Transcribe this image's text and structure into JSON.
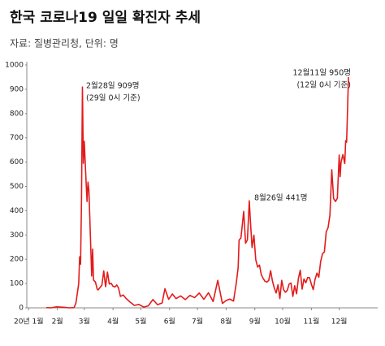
{
  "chart_data": {
    "type": "line",
    "title": "한국 코로나19 일일 확진자 추세",
    "subtitle": "자료: 질병관리청, 단위: 명",
    "annotations": [
      "2월28일 909명",
      "(29일 0시 기준)",
      "8월26일 441명",
      "12월11일 950명",
      "(12일 0시 기준)"
    ],
    "x": [
      20,
      25,
      31,
      35,
      40,
      45,
      50,
      52,
      55,
      56,
      57,
      58,
      59,
      60,
      61,
      62,
      63,
      64,
      65,
      66,
      67,
      68,
      69,
      70,
      71,
      72,
      73,
      75,
      76,
      78,
      80,
      82,
      84,
      86,
      88,
      90,
      92,
      94,
      96,
      98,
      100,
      103,
      106,
      110,
      115,
      120,
      125,
      130,
      135,
      140,
      145,
      148,
      152,
      156,
      160,
      165,
      170,
      175,
      180,
      185,
      190,
      195,
      200,
      205,
      210,
      214,
      218,
      222,
      225,
      227,
      228,
      230,
      231,
      233,
      235,
      237,
      239,
      240,
      242,
      244,
      246,
      248,
      250,
      252,
      254,
      256,
      258,
      260,
      262,
      264,
      266,
      268,
      270,
      272,
      274,
      276,
      278,
      280,
      282,
      284,
      286,
      288,
      290,
      292,
      294,
      296,
      298,
      300,
      302,
      304,
      306,
      308,
      310,
      312,
      314,
      316,
      318,
      320,
      322,
      324,
      326,
      328,
      330,
      332,
      334,
      336,
      337,
      338,
      340,
      342,
      343,
      344,
      346
    ],
    "series": [
      {
        "name": "확진자",
        "color": "#e31b1b",
        "values": [
          1,
          0,
          4,
          3,
          2,
          0,
          1,
          20,
          100,
          210,
          180,
          440,
          909,
          595,
          686,
          600,
          516,
          438,
          518,
          483,
          367,
          248,
          131,
          242,
          114,
          110,
          107,
          76,
          74,
          84,
          93,
          152,
          87,
          147,
          98,
          101,
          89,
          86,
          94,
          81,
          47,
          53,
          39,
          25,
          10,
          14,
          3,
          8,
          34,
          13,
          20,
          79,
          35,
          57,
          38,
          49,
          34,
          51,
          42,
          61,
          35,
          62,
          26,
          113,
          18,
          30,
          36,
          28,
          103,
          166,
          279,
          288,
          324,
          397,
          266,
          280,
          441,
          371,
          248,
          299,
          198,
          168,
          176,
          136,
          121,
          109,
          106,
          113,
          153,
          110,
          82,
          61,
          95,
          38,
          113,
          75,
          64,
          72,
          98,
          102,
          47,
          91,
          58,
          121,
          155,
          77,
          119,
          103,
          125,
          124,
          97,
          75,
          118,
          143,
          126,
          191,
          223,
          230,
          313,
          330,
          382,
          569,
          450,
          438,
          451,
          629,
          540,
          600,
          631,
          594,
          689,
          682,
          950
        ]
      }
    ],
    "xlim": [
      -1,
      360
    ],
    "xticks": [
      {
        "value": 1,
        "label": "20년 1월"
      },
      {
        "value": 32,
        "label": "2월"
      },
      {
        "value": 61,
        "label": "3월"
      },
      {
        "value": 92,
        "label": "4월"
      },
      {
        "value": 122,
        "label": "5월"
      },
      {
        "value": 153,
        "label": "6월"
      },
      {
        "value": 183,
        "label": "7월"
      },
      {
        "value": 214,
        "label": "8월"
      },
      {
        "value": 245,
        "label": "9월"
      },
      {
        "value": 275,
        "label": "10월"
      },
      {
        "value": 306,
        "label": "11월"
      },
      {
        "value": 336,
        "label": "12월"
      }
    ],
    "ylim": [
      0,
      1000
    ],
    "yticks": [
      0,
      100,
      200,
      300,
      400,
      500,
      600,
      700,
      800,
      900,
      1000
    ],
    "grid": false
  }
}
